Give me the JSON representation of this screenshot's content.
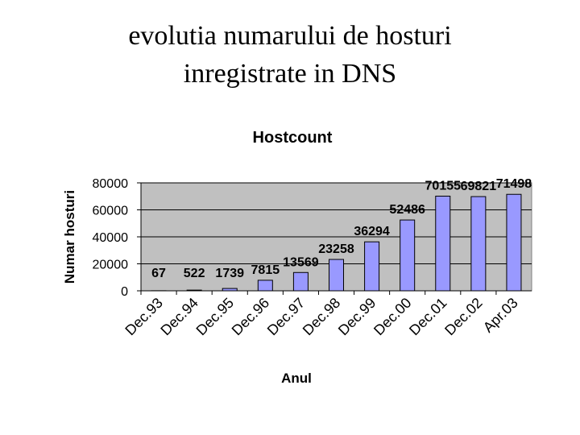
{
  "slide_title": [
    "evolutia numarului de hosturi",
    "inregistrate in DNS"
  ],
  "chart_data": {
    "type": "bar",
    "title": "Hostcount",
    "x_label": "Anul",
    "y_label": "Numar hosturi",
    "categories": [
      "Dec.93",
      "Dec.94",
      "Dec.95",
      "Dec.96",
      "Dec.97",
      "Dec.98",
      "Dec.99",
      "Dec.00",
      "Dec.01",
      "Dec.02",
      "Apr.03"
    ],
    "values": [
      67,
      522,
      1739,
      7815,
      13569,
      23258,
      36294,
      52486,
      70155,
      69821,
      71498
    ],
    "color": "#9999ff",
    "ylim": [
      0,
      80000
    ],
    "yticks": [
      0,
      20000,
      40000,
      60000,
      80000
    ],
    "grid": true
  }
}
